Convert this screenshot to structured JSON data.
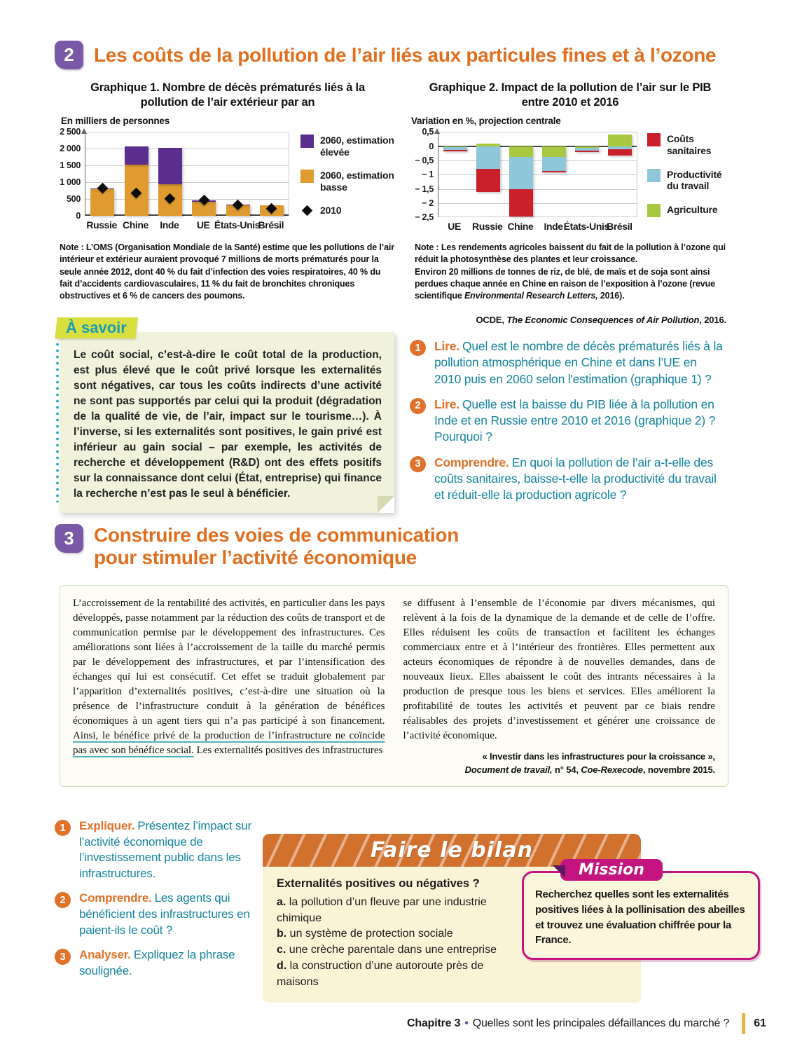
{
  "section2": {
    "number": "2",
    "title": "Les coûts de la pollution de l’air liés aux particules fines et à l’ozone",
    "note1": "Note : L’OMS (Organisation Mondiale de la Santé) estime que les pollutions de l’air intérieur et extérieur auraient provoqué 7 millions de morts prématurés pour la seule année 2012, dont 40 % du fait d’infection des voies respiratoires, 40 % du fait d’accidents cardiovasculaires, 11 % du fait de bronchites chroniques obstructives et 6 % de cancers des poumons.",
    "note2_p1": "Note : Les rendements agricoles baissent du fait de la pollution à l’ozone qui réduit la photosynthèse des plantes et leur croissance.",
    "note2_p2a": "Environ 20 millions de tonnes de riz, de blé, de maïs et de soja sont ainsi perdues chaque année en Chine en raison de l’exposition à l’ozone (revue scientifique ",
    "note2_italic": "Environmental Research Letters,",
    "note2_p2b": " 2016).",
    "source_prefix": "OCDE, ",
    "source_italic": "The Economic Consequences of Air Pollution",
    "source_suffix": ", 2016.",
    "asavoir_title": "À savoir",
    "asavoir_bold": "Le coût social",
    "asavoir_text": ", c’est-à-dire le coût total de la production, est plus élevé que le coût privé lorsque les externalités sont négatives, car tous les coûts indirects d’une activité ne sont pas supportés par celui qui la produit (dégradation de la qualité de vie, de l’air, impact sur le tourisme…). À l’inverse, si les externalités sont positives, le gain privé est inférieur au gain social – par exemple, les activités de recherche et développement (R&D) ont des effets positifs sur la connaissance dont celui (État, entreprise) qui finance la recherche n’est pas le seul à bénéficier.",
    "questions": [
      {
        "num": "1",
        "verb": "Lire.",
        "text": "Quel est le nombre de décès prématurés liés à la pollution atmosphérique en Chine et dans l’UE en 2010 puis en 2060 selon l'estimation (graphique 1) ?"
      },
      {
        "num": "2",
        "verb": "Lire.",
        "text": "Quelle est la baisse du PIB liée à la pollution en Inde et en Russie entre 2010 et 2016 (graphique 2) ? Pourquoi ?"
      },
      {
        "num": "3",
        "verb": "Comprendre.",
        "text": "En quoi la pollution de l’air a-t-elle des coûts sanitaires, baisse-t-elle la productivité du travail et réduit-elle la production agricole ?"
      }
    ]
  },
  "section3": {
    "number": "3",
    "title_line1": "Construire des voies de communication",
    "title_line2": "pour stimuler l’activité économique",
    "doc_col1_a": "L’accroissement de la rentabilité des activités, en particulier dans les pays développés, passe notamment par la réduction des coûts de transport et de communication permise par le développement des infrastructures. Ces améliorations sont liées à l’accroissement de la taille du marché permis par le développement des infrastructures, et par l’intensification des échanges qui lui est consécutif. Cet effet se traduit globalement par l’apparition d’externalités positives, c’est-à-dire une situation où la présence de l’infrastructure conduit à la génération de bénéfices économiques à un agent tiers qui n’a pas participé à son financement. ",
    "doc_col1_underline": "Ainsi, le bénéfice privé de la production de l’infrastructure ne coïncide pas avec son bénéfice social.",
    "doc_col1_b": " Les externalités positives des infrastructures",
    "doc_col2": "se diffusent à l’ensemble de l’économie par divers mécanismes, qui relèvent à la fois de la dynamique de la demande et de celle de l’offre. Elles réduisent les coûts de transaction et facilitent les échanges commerciaux entre et à l’intérieur des frontières. Elles permettent aux acteurs économiques de répondre à de nouvelles demandes, dans de nouveaux lieux. Elles abaissent le coût des intrants nécessaires à la production de presque tous les biens et services. Elles améliorent la profitabilité de toutes les activités et peuvent par ce biais rendre réalisables des projets d’investissement et générer une croissance de l’activité économique.",
    "doc_src_line1": "« Investir dans les infrastructures pour la croissance »,",
    "doc_src_italic1": "Document de travail,",
    "doc_src_mid": " n° 54, ",
    "doc_src_italic2": "Coe-Rexecode",
    "doc_src_end": ", novembre 2015.",
    "questions": [
      {
        "num": "1",
        "verb": "Expliquer.",
        "text": "Présentez l’impact sur l’activité économique de l’investissement public dans les infrastructures."
      },
      {
        "num": "2",
        "verb": "Comprendre.",
        "text": "Les agents qui bénéficient des infrastructures en paient-ils le coût ?"
      },
      {
        "num": "3",
        "verb": "Analyser.",
        "text": "Expliquez la phrase soulignée."
      }
    ],
    "bilan": {
      "header": "Faire le bilan",
      "heading": "Externalités positives ou négatives ?",
      "items": [
        {
          "letter": "a.",
          "text": " la pollution d’un fleuve par une industrie chimique"
        },
        {
          "letter": "b.",
          "text": " un système de protection sociale"
        },
        {
          "letter": "c.",
          "text": " une crèche parentale dans une entreprise"
        },
        {
          "letter": "d.",
          "text": " la construction d’une autoroute près de maisons"
        }
      ]
    },
    "mission": {
      "label": "Mission",
      "text": "Recherchez quelles sont les externalités positives liées à la pollinisation des abeilles et trouvez une évaluation chiffrée pour la France."
    }
  },
  "footer": {
    "chapter": "Chapitre 3",
    "separator": "•",
    "title": "Quelles sont les principales défaillances du marché ?",
    "page": "61"
  },
  "chart_data": [
    {
      "type": "bar",
      "title": "Graphique 1. Nombre de décès prématurés liés à la pollution de l’air extérieur par an",
      "unit_label": "En milliers de personnes",
      "categories": [
        "Russie",
        "Chine",
        "Inde",
        "UE",
        "États-Unis",
        "Brésil"
      ],
      "series": [
        {
          "name": "2060, estimation\nélevée",
          "role": "stack-top",
          "color": "#5b2d8e",
          "values": [
            810,
            2060,
            2030,
            460,
            345,
            315
          ]
        },
        {
          "name": "2060, estimation\nbasse",
          "role": "stack-base",
          "color": "#df9b2f",
          "values": [
            790,
            1530,
            940,
            430,
            320,
            315
          ]
        },
        {
          "name": "2010",
          "role": "marker",
          "color": "#0c0c0c",
          "values": [
            820,
            690,
            520,
            480,
            335,
            225
          ]
        }
      ],
      "ylim": [
        0,
        2500
      ],
      "ytick_labels": [
        "2 500",
        "2 000",
        "1 500",
        "1 000",
        "500",
        "0"
      ],
      "grid": true,
      "legend_position": "right"
    },
    {
      "type": "bar",
      "title": "Graphique 2. Impact de la pollution de l’air sur le PIB entre 2010 et 2016",
      "unit_label": "Variation en %, projection centrale",
      "categories": [
        "UE",
        "Russie",
        "Chine",
        "Inde",
        "États-Unis",
        "Brésil"
      ],
      "series": [
        {
          "name": "Coûts sanitaires",
          "color": "#c9202c",
          "values": [
            -0.05,
            -0.82,
            -0.98,
            -0.05,
            -0.05,
            -0.2
          ]
        },
        {
          "name": "Productivité\ndu travail",
          "color": "#8ec7da",
          "values": [
            -0.1,
            -0.8,
            -1.12,
            -0.5,
            -0.1,
            -0.12
          ]
        },
        {
          "name": "Agriculture",
          "color": "#a8c93f",
          "values": [
            -0.04,
            0.1,
            -0.38,
            -0.37,
            -0.06,
            0.42
          ]
        }
      ],
      "ylim": [
        -2.5,
        0.5
      ],
      "ytick_labels": [
        "0,5",
        "0",
        "− 0,5",
        "− 1",
        "− 1,5",
        "− 2",
        "− 2,5"
      ],
      "grid": true,
      "legend_position": "right",
      "stack_order_downward": [
        "Agriculture",
        "Productivité du travail",
        "Coûts sanitaires"
      ]
    }
  ]
}
